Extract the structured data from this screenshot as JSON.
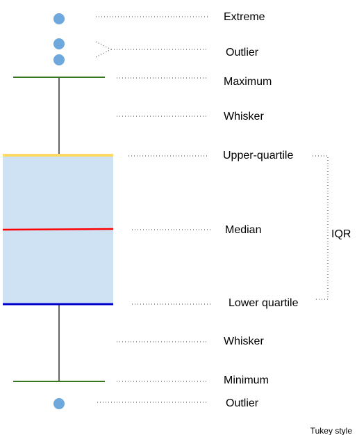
{
  "labels": {
    "extreme": "Extreme",
    "outlier_top": "Outlier",
    "maximum": "Maximum",
    "whisker_top": "Whisker",
    "upper_quartile": "Upper-quartile",
    "median": "Median",
    "lower_quartile": "Lower quartile",
    "whisker_bottom": "Whisker",
    "minimum": "Minimum",
    "outlier_bottom": "Outlier",
    "iqr": "IQR"
  },
  "footer": "Tukey style",
  "colors": {
    "point": "#6fa8dc",
    "box_fill": "#cfe2f3",
    "upper_quartile_line": "#ffd966",
    "median_line": "#ff0000",
    "lower_quartile_line": "#0000cc",
    "whisker_cap": "#38761d",
    "whisker_line": "#666666"
  }
}
